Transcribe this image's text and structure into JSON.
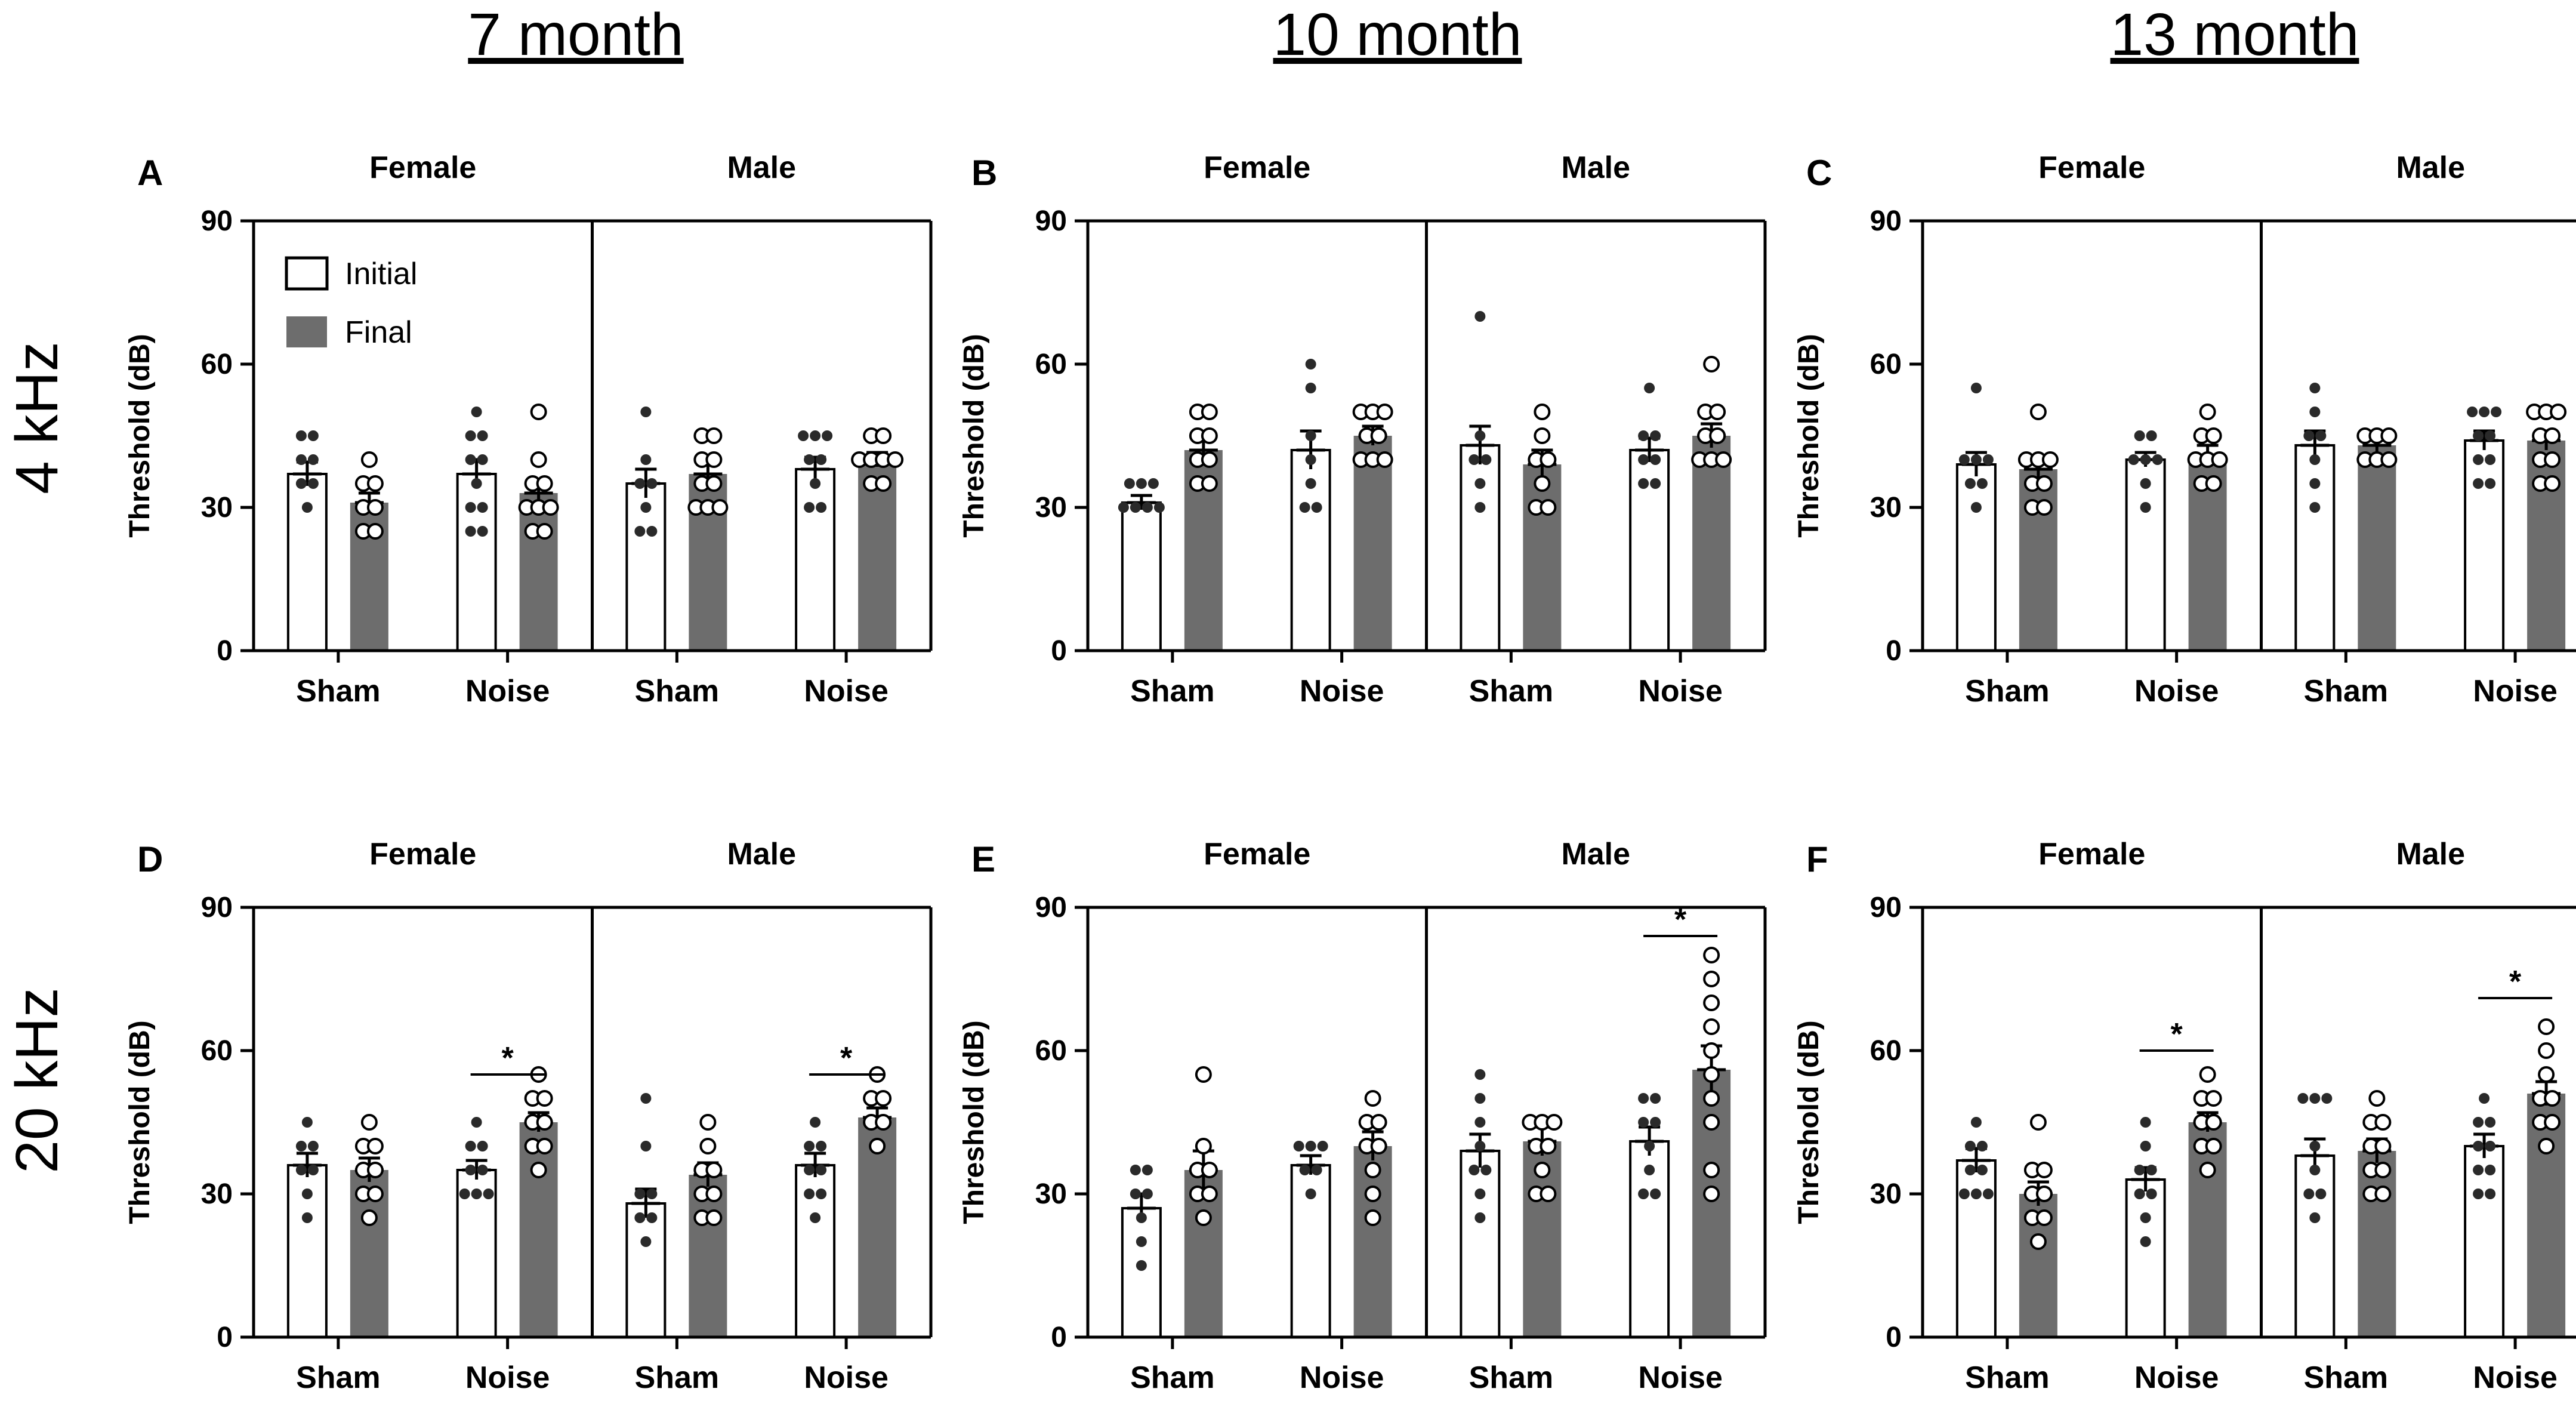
{
  "colors": {
    "initial_fill": "#ffffff",
    "final_fill": "#6d6d6d",
    "ink": "#000000",
    "initial_dots": "#2a2a2a",
    "final_dots": "#ffffff"
  },
  "column_titles": [
    "7 month",
    "10 month",
    "13 month"
  ],
  "row_titles": [
    "4 kHz",
    "20 kHz"
  ],
  "chart_data": [
    {
      "type": "bar",
      "panel": "A",
      "row": 0,
      "col": 0,
      "ylabel": "Threshold (dB)",
      "ylim": [
        0,
        90
      ],
      "yticks": [
        0,
        30,
        60,
        90
      ],
      "sexes": [
        "Female",
        "Male"
      ],
      "groups": [
        "Sham",
        "Noise"
      ],
      "legend": [
        "Initial",
        "Final"
      ],
      "bars": [
        {
          "sex": "Female",
          "group": "Sham",
          "initial": {
            "mean": 37,
            "sem": 2.5,
            "points": [
              45,
              45,
              40,
              40,
              35,
              35,
              30
            ]
          },
          "final": {
            "mean": 31,
            "sem": 2,
            "points": [
              40,
              35,
              35,
              30,
              30,
              25,
              25
            ]
          }
        },
        {
          "sex": "Female",
          "group": "Noise",
          "initial": {
            "mean": 37,
            "sem": 3,
            "points": [
              50,
              45,
              45,
              40,
              40,
              35,
              30,
              30,
              25,
              25
            ]
          },
          "final": {
            "mean": 33,
            "sem": 2.5,
            "points": [
              50,
              40,
              35,
              35,
              30,
              30,
              30,
              25,
              25
            ]
          }
        },
        {
          "sex": "Male",
          "group": "Sham",
          "initial": {
            "mean": 35,
            "sem": 3,
            "points": [
              50,
              40,
              35,
              35,
              30,
              25,
              25
            ]
          },
          "final": {
            "mean": 37,
            "sem": 2,
            "points": [
              45,
              45,
              40,
              40,
              35,
              35,
              30,
              30,
              30
            ]
          }
        },
        {
          "sex": "Male",
          "group": "Noise",
          "initial": {
            "mean": 38,
            "sem": 2.5,
            "points": [
              45,
              45,
              45,
              40,
              40,
              35,
              30,
              30
            ]
          },
          "final": {
            "mean": 40,
            "sem": 1.5,
            "points": [
              45,
              45,
              40,
              40,
              40,
              40,
              35,
              35
            ]
          }
        }
      ],
      "significance": []
    },
    {
      "type": "bar",
      "panel": "B",
      "row": 0,
      "col": 1,
      "ylabel": "Threshold (dB)",
      "ylim": [
        0,
        90
      ],
      "yticks": [
        0,
        30,
        60,
        90
      ],
      "sexes": [
        "Female",
        "Male"
      ],
      "groups": [
        "Sham",
        "Noise"
      ],
      "bars": [
        {
          "sex": "Female",
          "group": "Sham",
          "initial": {
            "mean": 31,
            "sem": 1.5,
            "points": [
              35,
              35,
              35,
              30,
              30,
              30,
              30
            ]
          },
          "final": {
            "mean": 42,
            "sem": 2.5,
            "points": [
              50,
              50,
              45,
              45,
              40,
              40,
              35,
              35
            ]
          }
        },
        {
          "sex": "Female",
          "group": "Noise",
          "initial": {
            "mean": 42,
            "sem": 4,
            "points": [
              60,
              55,
              45,
              40,
              35,
              30,
              30
            ]
          },
          "final": {
            "mean": 45,
            "sem": 2,
            "points": [
              50,
              50,
              50,
              45,
              45,
              40,
              40,
              40
            ]
          }
        },
        {
          "sex": "Male",
          "group": "Sham",
          "initial": {
            "mean": 43,
            "sem": 4,
            "points": [
              70,
              45,
              40,
              40,
              35,
              30
            ]
          },
          "final": {
            "mean": 39,
            "sem": 3,
            "points": [
              50,
              45,
              40,
              40,
              35,
              30,
              30
            ]
          }
        },
        {
          "sex": "Male",
          "group": "Noise",
          "initial": {
            "mean": 42,
            "sem": 2.5,
            "points": [
              55,
              45,
              45,
              40,
              40,
              35,
              35
            ]
          },
          "final": {
            "mean": 45,
            "sem": 2.5,
            "points": [
              60,
              50,
              50,
              45,
              45,
              40,
              40,
              40
            ]
          }
        }
      ],
      "significance": []
    },
    {
      "type": "bar",
      "panel": "C",
      "row": 0,
      "col": 2,
      "ylabel": "Threshold (dB)",
      "ylim": [
        0,
        90
      ],
      "yticks": [
        0,
        30,
        60,
        90
      ],
      "sexes": [
        "Female",
        "Male"
      ],
      "groups": [
        "Sham",
        "Noise"
      ],
      "bars": [
        {
          "sex": "Female",
          "group": "Sham",
          "initial": {
            "mean": 39,
            "sem": 2.5,
            "points": [
              55,
              40,
              40,
              40,
              35,
              35,
              30
            ]
          },
          "final": {
            "mean": 38,
            "sem": 2,
            "points": [
              50,
              40,
              40,
              40,
              35,
              35,
              30,
              30
            ]
          }
        },
        {
          "sex": "Female",
          "group": "Noise",
          "initial": {
            "mean": 40,
            "sem": 1.5,
            "points": [
              45,
              45,
              40,
              40,
              40,
              35,
              30
            ]
          },
          "final": {
            "mean": 41,
            "sem": 2,
            "points": [
              50,
              45,
              45,
              40,
              40,
              40,
              35,
              35
            ]
          }
        },
        {
          "sex": "Male",
          "group": "Sham",
          "initial": {
            "mean": 43,
            "sem": 3,
            "points": [
              55,
              50,
              45,
              45,
              40,
              35,
              30
            ]
          },
          "final": {
            "mean": 43,
            "sem": 1.5,
            "points": [
              45,
              45,
              45,
              40,
              40,
              40
            ]
          }
        },
        {
          "sex": "Male",
          "group": "Noise",
          "initial": {
            "mean": 44,
            "sem": 2,
            "points": [
              50,
              50,
              50,
              45,
              45,
              40,
              40,
              35,
              35
            ]
          },
          "final": {
            "mean": 44,
            "sem": 2,
            "points": [
              50,
              50,
              50,
              45,
              45,
              40,
              40,
              35,
              35
            ]
          }
        }
      ],
      "significance": []
    },
    {
      "type": "bar",
      "panel": "D",
      "row": 1,
      "col": 0,
      "ylabel": "Threshold (dB)",
      "ylim": [
        0,
        90
      ],
      "yticks": [
        0,
        30,
        60,
        90
      ],
      "sexes": [
        "Female",
        "Male"
      ],
      "groups": [
        "Sham",
        "Noise"
      ],
      "bars": [
        {
          "sex": "Female",
          "group": "Sham",
          "initial": {
            "mean": 36,
            "sem": 2.5,
            "points": [
              45,
              40,
              40,
              35,
              35,
              30,
              25
            ]
          },
          "final": {
            "mean": 35,
            "sem": 2.5,
            "points": [
              45,
              40,
              40,
              35,
              35,
              30,
              30,
              25
            ]
          }
        },
        {
          "sex": "Female",
          "group": "Noise",
          "initial": {
            "mean": 35,
            "sem": 2,
            "points": [
              45,
              40,
              40,
              35,
              35,
              30,
              30,
              30
            ]
          },
          "final": {
            "mean": 45,
            "sem": 2,
            "points": [
              55,
              50,
              50,
              45,
              45,
              40,
              40,
              35
            ]
          }
        },
        {
          "sex": "Male",
          "group": "Sham",
          "initial": {
            "mean": 28,
            "sem": 3,
            "points": [
              50,
              40,
              30,
              30,
              25,
              25,
              20
            ]
          },
          "final": {
            "mean": 34,
            "sem": 2.5,
            "points": [
              45,
              40,
              35,
              35,
              30,
              30,
              25,
              25
            ]
          }
        },
        {
          "sex": "Male",
          "group": "Noise",
          "initial": {
            "mean": 36,
            "sem": 2.5,
            "points": [
              45,
              40,
              40,
              35,
              35,
              30,
              30,
              25
            ]
          },
          "final": {
            "mean": 46,
            "sem": 2,
            "points": [
              55,
              50,
              50,
              45,
              45,
              40
            ]
          }
        }
      ],
      "significance": [
        {
          "sex": "Female",
          "group": "Noise",
          "label": "*",
          "y": 55
        },
        {
          "sex": "Male",
          "group": "Noise",
          "label": "*",
          "y": 55
        }
      ]
    },
    {
      "type": "bar",
      "panel": "E",
      "row": 1,
      "col": 1,
      "ylabel": "Threshold (dB)",
      "ylim": [
        0,
        90
      ],
      "yticks": [
        0,
        30,
        60,
        90
      ],
      "sexes": [
        "Female",
        "Male"
      ],
      "groups": [
        "Sham",
        "Noise"
      ],
      "bars": [
        {
          "sex": "Female",
          "group": "Sham",
          "initial": {
            "mean": 27,
            "sem": 3,
            "points": [
              35,
              35,
              30,
              30,
              25,
              20,
              15
            ]
          },
          "final": {
            "mean": 35,
            "sem": 4,
            "points": [
              55,
              40,
              35,
              35,
              30,
              30,
              25
            ]
          }
        },
        {
          "sex": "Female",
          "group": "Noise",
          "initial": {
            "mean": 36,
            "sem": 2,
            "points": [
              40,
              40,
              40,
              35,
              35,
              30
            ]
          },
          "final": {
            "mean": 40,
            "sem": 3,
            "points": [
              50,
              45,
              45,
              40,
              40,
              35,
              30,
              25
            ]
          }
        },
        {
          "sex": "Male",
          "group": "Sham",
          "initial": {
            "mean": 39,
            "sem": 3.5,
            "points": [
              55,
              50,
              45,
              40,
              35,
              35,
              30,
              25
            ]
          },
          "final": {
            "mean": 41,
            "sem": 3,
            "points": [
              45,
              45,
              45,
              40,
              40,
              35,
              30,
              30
            ]
          }
        },
        {
          "sex": "Male",
          "group": "Noise",
          "initial": {
            "mean": 41,
            "sem": 3,
            "points": [
              50,
              50,
              45,
              45,
              40,
              35,
              30,
              30
            ]
          },
          "final": {
            "mean": 56,
            "sem": 5,
            "points": [
              80,
              75,
              70,
              65,
              60,
              55,
              50,
              45,
              35,
              30
            ]
          }
        }
      ],
      "significance": [
        {
          "sex": "Male",
          "group": "Noise",
          "label": "*",
          "y": 84
        }
      ]
    },
    {
      "type": "bar",
      "panel": "F",
      "row": 1,
      "col": 2,
      "ylabel": "Threshold (dB)",
      "ylim": [
        0,
        90
      ],
      "yticks": [
        0,
        30,
        60,
        90
      ],
      "sexes": [
        "Female",
        "Male"
      ],
      "groups": [
        "Sham",
        "Noise"
      ],
      "bars": [
        {
          "sex": "Female",
          "group": "Sham",
          "initial": {
            "mean": 37,
            "sem": 2.5,
            "points": [
              45,
              40,
              40,
              35,
              35,
              30,
              30,
              30
            ]
          },
          "final": {
            "mean": 30,
            "sem": 2.5,
            "points": [
              45,
              35,
              35,
              30,
              30,
              25,
              25,
              20
            ]
          }
        },
        {
          "sex": "Female",
          "group": "Noise",
          "initial": {
            "mean": 33,
            "sem": 2.5,
            "points": [
              45,
              40,
              35,
              35,
              30,
              30,
              25,
              20
            ]
          },
          "final": {
            "mean": 45,
            "sem": 2,
            "points": [
              55,
              50,
              50,
              45,
              45,
              40,
              40,
              35
            ]
          }
        },
        {
          "sex": "Male",
          "group": "Sham",
          "initial": {
            "mean": 38,
            "sem": 3.5,
            "points": [
              50,
              50,
              50,
              40,
              35,
              30,
              30,
              25
            ]
          },
          "final": {
            "mean": 39,
            "sem": 2.5,
            "points": [
              50,
              45,
              45,
              40,
              40,
              35,
              35,
              30,
              30
            ]
          }
        },
        {
          "sex": "Male",
          "group": "Noise",
          "initial": {
            "mean": 40,
            "sem": 2.5,
            "points": [
              50,
              45,
              45,
              40,
              40,
              35,
              35,
              30,
              30
            ]
          },
          "final": {
            "mean": 51,
            "sem": 2.5,
            "points": [
              65,
              60,
              55,
              50,
              50,
              45,
              45,
              40
            ]
          }
        }
      ],
      "significance": [
        {
          "sex": "Female",
          "group": "Noise",
          "label": "*",
          "y": 60
        },
        {
          "sex": "Male",
          "group": "Noise",
          "label": "*",
          "y": 71
        }
      ]
    }
  ]
}
